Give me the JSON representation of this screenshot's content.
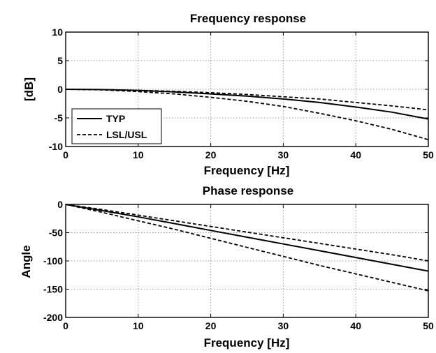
{
  "chart_data": [
    {
      "type": "line",
      "title": "Frequency response",
      "xlabel": "Frequency [Hz]",
      "ylabel": "[dB]",
      "xlim": [
        0,
        50
      ],
      "ylim": [
        -10,
        10
      ],
      "x_ticks": [
        "0",
        "10",
        "20",
        "30",
        "40",
        "50"
      ],
      "y_ticks": [
        "10",
        "5",
        "0",
        "-5",
        "-10"
      ],
      "grid": true,
      "legend": {
        "placement": "bottom-left",
        "entries": [
          {
            "label": "TYP",
            "style": "solid"
          },
          {
            "label": "LSL/USL",
            "style": "dashed"
          }
        ]
      },
      "x": [
        0,
        5,
        10,
        15,
        20,
        25,
        30,
        35,
        40,
        45,
        50
      ],
      "series": [
        {
          "style": "solid",
          "values": [
            0,
            -0.05,
            -0.2,
            -0.45,
            -0.8,
            -1.2,
            -1.7,
            -2.3,
            -3.1,
            -4.0,
            -5.2
          ]
        },
        {
          "style": "dashed",
          "values": [
            0,
            -0.05,
            -0.2,
            -0.35,
            -0.6,
            -0.9,
            -1.3,
            -1.7,
            -2.3,
            -2.9,
            -3.6
          ]
        },
        {
          "style": "dashed",
          "values": [
            0,
            -0.1,
            -0.4,
            -0.8,
            -1.4,
            -2.1,
            -3.0,
            -4.2,
            -5.5,
            -7.0,
            -8.8
          ]
        }
      ]
    },
    {
      "type": "line",
      "title": "Phase response",
      "xlabel": "Frequency [Hz]",
      "ylabel": "Angle",
      "xlim": [
        0,
        50
      ],
      "ylim": [
        -200,
        0
      ],
      "x_ticks": [
        "0",
        "10",
        "20",
        "30",
        "40",
        "50"
      ],
      "y_ticks": [
        "0",
        "-50",
        "-100",
        "-150",
        "-200"
      ],
      "grid": true,
      "x": [
        0,
        5,
        10,
        15,
        20,
        25,
        30,
        35,
        40,
        45,
        50
      ],
      "series": [
        {
          "style": "solid",
          "values": [
            0,
            -11,
            -22,
            -34,
            -46,
            -58,
            -70,
            -82,
            -94,
            -106,
            -118
          ]
        },
        {
          "style": "dashed",
          "values": [
            0,
            -9,
            -19,
            -29,
            -39,
            -49,
            -59,
            -69,
            -79,
            -89,
            -100
          ]
        },
        {
          "style": "dashed",
          "values": [
            0,
            -14,
            -29,
            -44,
            -60,
            -76,
            -92,
            -108,
            -123,
            -138,
            -153
          ]
        }
      ]
    }
  ]
}
